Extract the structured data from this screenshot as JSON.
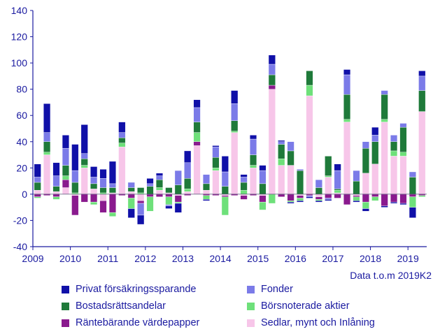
{
  "chart_data": {
    "type": "bar",
    "stacked": true,
    "ylim": [
      -40,
      140
    ],
    "yticks": [
      -40,
      -20,
      0,
      20,
      40,
      60,
      80,
      100,
      120,
      140
    ],
    "x_labels": [
      "2009",
      "2010",
      "2011",
      "2012",
      "2013",
      "2014",
      "2015",
      "2016",
      "2017",
      "2018",
      "2019"
    ],
    "quarters": [
      "2009K1",
      "2009K2",
      "2009K3",
      "2009K4",
      "2010K1",
      "2010K2",
      "2010K3",
      "2010K4",
      "2011K1",
      "2011K2",
      "2011K3",
      "2011K4",
      "2012K1",
      "2012K2",
      "2012K3",
      "2012K4",
      "2013K1",
      "2013K2",
      "2013K3",
      "2013K4",
      "2014K1",
      "2014K2",
      "2014K3",
      "2014K4",
      "2015K1",
      "2015K2",
      "2015K3",
      "2015K4",
      "2016K1",
      "2016K2",
      "2016K3",
      "2016K4",
      "2017K1",
      "2017K2",
      "2017K3",
      "2017K4",
      "2018K1",
      "2018K2",
      "2018K3",
      "2018K4",
      "2019K1",
      "2019K2"
    ],
    "note": "Data t.o.m 2019K2",
    "series": [
      {
        "name": "Sedlar, mynt och Inlåning",
        "color": "#f7c6e9",
        "values": [
          3,
          30,
          2,
          5,
          -1,
          20,
          4,
          -5,
          1,
          36,
          2,
          -5,
          0,
          3,
          1,
          -1,
          2,
          37,
          3,
          18,
          -1,
          47,
          -1,
          20,
          -1,
          80,
          22,
          22,
          -1,
          75,
          -2,
          13,
          1,
          55,
          -1,
          16,
          23,
          55,
          29,
          29,
          0,
          63
        ]
      },
      {
        "name": "Räntebärande värdepapper",
        "color": "#8a1a8e",
        "values": [
          -2,
          -1,
          -2,
          6,
          -15,
          -6,
          -6,
          -9,
          -14,
          -1,
          -3,
          -2,
          -2,
          -2,
          -2,
          -5,
          -1,
          3,
          -1,
          -1,
          -1,
          -1,
          -3,
          -1,
          -5,
          3,
          -2,
          -5,
          -2,
          -1,
          -2,
          -3,
          -3,
          -8,
          -1,
          -6,
          -2,
          -9,
          -6,
          -7,
          -2,
          -1
        ]
      },
      {
        "name": "Börsnoterade aktier",
        "color": "#6ee07a",
        "values": [
          -1,
          2,
          -2,
          3,
          1,
          2,
          -2,
          1,
          -3,
          3,
          -8,
          1,
          -11,
          2,
          -6,
          -1,
          2,
          7,
          -3,
          2,
          -14,
          1,
          3,
          2,
          -6,
          -7,
          5,
          -1,
          -2,
          8,
          -1,
          1,
          2,
          2,
          -3,
          -5,
          -3,
          2,
          4,
          3,
          -8,
          -1
        ]
      },
      {
        "name": "Bostadsrättsandelar",
        "color": "#1f7a3a",
        "values": [
          6,
          8,
          4,
          8,
          8,
          5,
          4,
          4,
          4,
          4,
          3,
          4,
          6,
          6,
          4,
          7,
          8,
          8,
          5,
          8,
          6,
          8,
          6,
          8,
          8,
          8,
          11,
          11,
          18,
          11,
          5,
          15,
          1,
          19,
          10,
          19,
          17,
          19,
          7,
          19,
          13,
          16
        ]
      },
      {
        "name": "Fonder",
        "color": "#7b7be8",
        "values": [
          4,
          7,
          8,
          13,
          9,
          4,
          5,
          7,
          3,
          4,
          4,
          -9,
          2,
          3,
          -1,
          11,
          12,
          11,
          7,
          8,
          11,
          13,
          4,
          12,
          10,
          8,
          2,
          7,
          1,
          -1,
          6,
          -1,
          14,
          15,
          8,
          5,
          5,
          3,
          5,
          3,
          4,
          11
        ]
      },
      {
        "name": "Privat försäkringssparande",
        "color": "#1010a8",
        "values": [
          10,
          22,
          10,
          10,
          20,
          22,
          8,
          7,
          17,
          8,
          -7,
          -7,
          4,
          2,
          -2,
          -7,
          9,
          6,
          -1,
          1,
          12,
          10,
          2,
          3,
          4,
          7,
          1,
          -1,
          -1,
          -1,
          -1,
          -1,
          5,
          4,
          -1,
          -2,
          6,
          -1,
          -1,
          -1,
          -8,
          4
        ]
      }
    ]
  },
  "legend": [
    {
      "label": "Privat försäkringssparande",
      "color": "#1010a8"
    },
    {
      "label": "Fonder",
      "color": "#7b7be8"
    },
    {
      "label": "Bostadsrättsandelar",
      "color": "#1f7a3a"
    },
    {
      "label": "Börsnoterade aktier",
      "color": "#6ee07a"
    },
    {
      "label": "Räntebärande värdepapper",
      "color": "#8a1a8e"
    },
    {
      "label": "Sedlar, mynt och Inlåning",
      "color": "#f7c6e9"
    }
  ]
}
